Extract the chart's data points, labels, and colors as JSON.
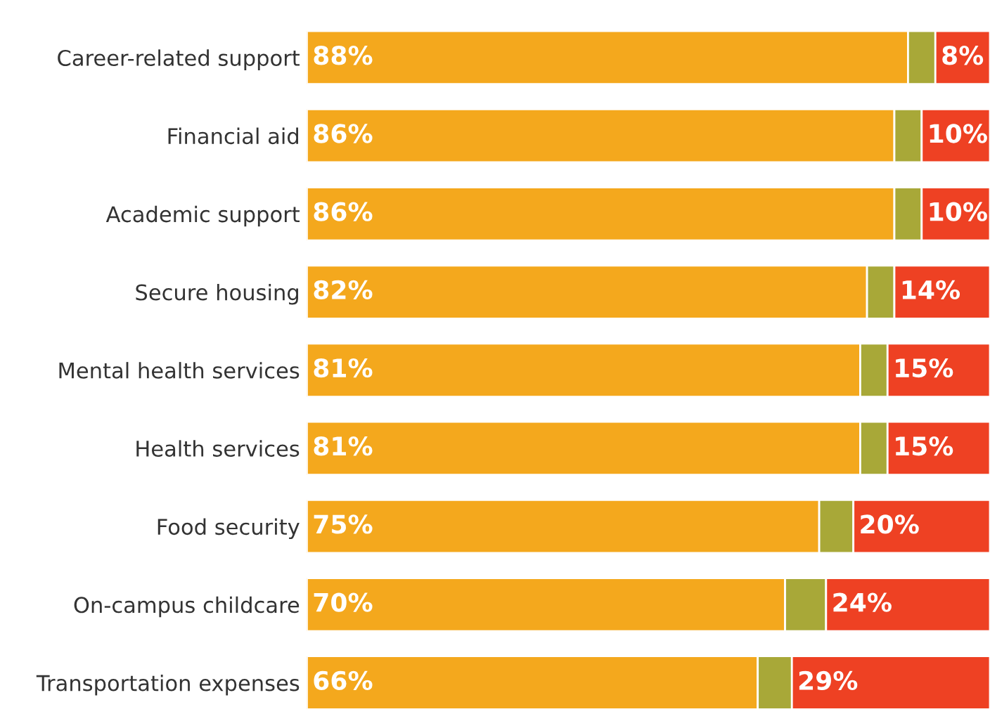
{
  "chart_data": {
    "type": "bar",
    "orientation": "horizontal",
    "stacked": true,
    "tick_labels": "y",
    "grid": false,
    "legend": false,
    "categories": [
      "Career-related support",
      "Financial aid",
      "Academic support",
      "Secure housing",
      "Mental health services",
      "Health services",
      "Food security",
      "On-campus childcare",
      "Transportation expenses"
    ],
    "xlim": [
      0,
      100
    ],
    "series": [
      {
        "color": "#f4a81d",
        "values": [
          88,
          86,
          86,
          82,
          81,
          81,
          75,
          70,
          66
        ],
        "value_labels": [
          "88%",
          "86%",
          "86%",
          "82%",
          "81%",
          "81%",
          "75%",
          "70%",
          "66%"
        ]
      },
      {
        "color": "#a8a838",
        "values": [
          4,
          4,
          4,
          4,
          4,
          4,
          5,
          6,
          5
        ]
      },
      {
        "color": "#ee4123",
        "values": [
          8,
          10,
          10,
          14,
          15,
          15,
          20,
          24,
          29
        ],
        "value_labels": [
          "8%",
          "10%",
          "10%",
          "14%",
          "15%",
          "15%",
          "20%",
          "24%",
          "29%"
        ]
      }
    ]
  }
}
